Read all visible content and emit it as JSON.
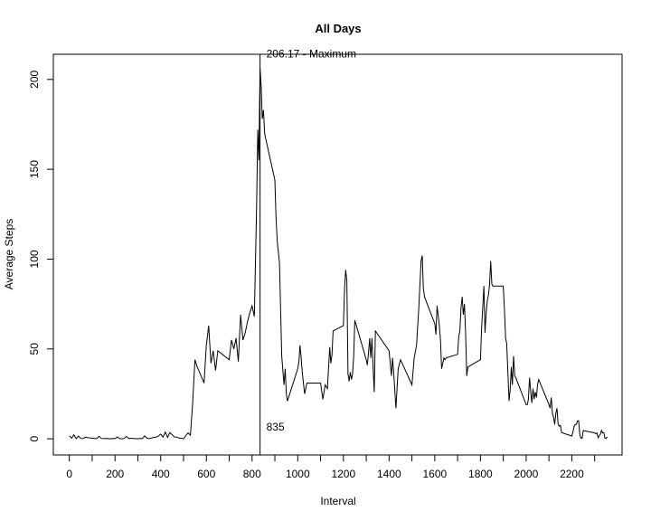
{
  "chart_data": {
    "type": "line",
    "title": "All Days",
    "xlabel": "Interval",
    "ylabel": "Average Steps",
    "xlim": [
      -70,
      2420
    ],
    "ylim": [
      -9,
      214
    ],
    "x_ticks": [
      0,
      200,
      400,
      600,
      800,
      1000,
      1200,
      1400,
      1600,
      1800,
      2000,
      2200
    ],
    "x_minor_ticks": [
      100,
      300,
      500,
      700,
      900,
      1100,
      1300,
      1500,
      1700,
      1900,
      2100,
      2300
    ],
    "y_ticks": [
      0,
      50,
      100,
      150,
      200
    ],
    "grid": false,
    "series": [
      {
        "color": "#000000",
        "points": [
          [
            0,
            1.7
          ],
          [
            10,
            0.3
          ],
          [
            20,
            2.2
          ],
          [
            30,
            0.1
          ],
          [
            40,
            1.5
          ],
          [
            50,
            0.2
          ],
          [
            60,
            0.1
          ],
          [
            70,
            0.9
          ],
          [
            80,
            0.6
          ],
          [
            90,
            0.5
          ],
          [
            100,
            0.3
          ],
          [
            110,
            0.2
          ],
          [
            120,
            0.1
          ],
          [
            130,
            1.4
          ],
          [
            140,
            0.2
          ],
          [
            150,
            0.1
          ],
          [
            160,
            0.2
          ],
          [
            170,
            0.1
          ],
          [
            180,
            0.0
          ],
          [
            190,
            0.2
          ],
          [
            200,
            0.1
          ],
          [
            210,
            1.0
          ],
          [
            220,
            0.1
          ],
          [
            230,
            0.0
          ],
          [
            240,
            0.2
          ],
          [
            250,
            1.3
          ],
          [
            260,
            0.1
          ],
          [
            270,
            0.3
          ],
          [
            280,
            0.1
          ],
          [
            290,
            0.1
          ],
          [
            300,
            0.0
          ],
          [
            310,
            0.2
          ],
          [
            320,
            0.1
          ],
          [
            330,
            1.6
          ],
          [
            340,
            0.3
          ],
          [
            350,
            0.1
          ],
          [
            360,
            0.4
          ],
          [
            370,
            0.8
          ],
          [
            380,
            0.9
          ],
          [
            390,
            1.5
          ],
          [
            400,
            2.6
          ],
          [
            410,
            0.9
          ],
          [
            420,
            3.8
          ],
          [
            430,
            0.8
          ],
          [
            440,
            3.5
          ],
          [
            450,
            2.3
          ],
          [
            460,
            1.0
          ],
          [
            470,
            0.9
          ],
          [
            480,
            0.4
          ],
          [
            490,
            0.3
          ],
          [
            500,
            0.0
          ],
          [
            510,
            1.8
          ],
          [
            520,
            3.3
          ],
          [
            530,
            2.0
          ],
          [
            540,
            20.0
          ],
          [
            550,
            44.0
          ],
          [
            560,
            40.0
          ],
          [
            570,
            37.0
          ],
          [
            580,
            34.0
          ],
          [
            590,
            31.0
          ],
          [
            600,
            52.0
          ],
          [
            610,
            63.0
          ],
          [
            620,
            42.0
          ],
          [
            630,
            49.0
          ],
          [
            640,
            38.0
          ],
          [
            650,
            49.0
          ],
          [
            700,
            44.0
          ],
          [
            710,
            55.0
          ],
          [
            720,
            50.0
          ],
          [
            730,
            56.0
          ],
          [
            740,
            43.0
          ],
          [
            750,
            69.0
          ],
          [
            760,
            55.0
          ],
          [
            770,
            59.0
          ],
          [
            780,
            65.0
          ],
          [
            790,
            70.0
          ],
          [
            800,
            74.0
          ],
          [
            810,
            68.0
          ],
          [
            820,
            129.0
          ],
          [
            825,
            172.0
          ],
          [
            830,
            155.0
          ],
          [
            835,
            206.17
          ],
          [
            840,
            196.0
          ],
          [
            845,
            178.0
          ],
          [
            850,
            183.0
          ],
          [
            855,
            170.0
          ],
          [
            860,
            167.0
          ],
          [
            900,
            144.0
          ],
          [
            905,
            123.0
          ],
          [
            910,
            110.0
          ],
          [
            920,
            98.0
          ],
          [
            930,
            46.0
          ],
          [
            940,
            30.0
          ],
          [
            945,
            39.0
          ],
          [
            950,
            25.0
          ],
          [
            955,
            21.0
          ],
          [
            1000,
            39.0
          ],
          [
            1005,
            43.0
          ],
          [
            1010,
            52.0
          ],
          [
            1015,
            45.0
          ],
          [
            1020,
            37.0
          ],
          [
            1030,
            25.0
          ],
          [
            1040,
            31.0
          ],
          [
            1100,
            31.0
          ],
          [
            1110,
            22.0
          ],
          [
            1120,
            30.0
          ],
          [
            1130,
            28.0
          ],
          [
            1140,
            51.0
          ],
          [
            1145,
            42.0
          ],
          [
            1150,
            47.0
          ],
          [
            1155,
            60.0
          ],
          [
            1200,
            63.0
          ],
          [
            1205,
            84.0
          ],
          [
            1210,
            94.0
          ],
          [
            1215,
            88.0
          ],
          [
            1220,
            36.0
          ],
          [
            1225,
            32.0
          ],
          [
            1230,
            37.0
          ],
          [
            1235,
            33.0
          ],
          [
            1240,
            36.0
          ],
          [
            1245,
            46.0
          ],
          [
            1250,
            66.0
          ],
          [
            1300,
            44.0
          ],
          [
            1305,
            41.0
          ],
          [
            1310,
            48.0
          ],
          [
            1315,
            56.0
          ],
          [
            1320,
            45.0
          ],
          [
            1325,
            56.0
          ],
          [
            1330,
            39.0
          ],
          [
            1335,
            26.0
          ],
          [
            1340,
            60.0
          ],
          [
            1400,
            49.0
          ],
          [
            1405,
            42.0
          ],
          [
            1410,
            35.0
          ],
          [
            1415,
            45.0
          ],
          [
            1420,
            37.0
          ],
          [
            1430,
            17.0
          ],
          [
            1440,
            39.0
          ],
          [
            1450,
            44.0
          ],
          [
            1500,
            30.0
          ],
          [
            1510,
            45.0
          ],
          [
            1520,
            52.0
          ],
          [
            1530,
            73.0
          ],
          [
            1540,
            99.0
          ],
          [
            1545,
            102.0
          ],
          [
            1550,
            84.0
          ],
          [
            1555,
            79.0
          ],
          [
            1600,
            64.0
          ],
          [
            1605,
            58.0
          ],
          [
            1610,
            74.0
          ],
          [
            1620,
            63.0
          ],
          [
            1625,
            55.0
          ],
          [
            1630,
            39.0
          ],
          [
            1640,
            45.0
          ],
          [
            1645,
            44.0
          ],
          [
            1650,
            45.0
          ],
          [
            1700,
            47.0
          ],
          [
            1705,
            57.0
          ],
          [
            1710,
            60.0
          ],
          [
            1715,
            73.0
          ],
          [
            1720,
            79.0
          ],
          [
            1725,
            69.0
          ],
          [
            1730,
            75.0
          ],
          [
            1735,
            58.0
          ],
          [
            1740,
            35.0
          ],
          [
            1745,
            40.0
          ],
          [
            1800,
            44.0
          ],
          [
            1805,
            61.0
          ],
          [
            1810,
            73.0
          ],
          [
            1815,
            85.0
          ],
          [
            1820,
            59.0
          ],
          [
            1825,
            70.0
          ],
          [
            1830,
            77.0
          ],
          [
            1835,
            80.0
          ],
          [
            1840,
            86.0
          ],
          [
            1845,
            99.0
          ],
          [
            1850,
            86.0
          ],
          [
            1855,
            85.0
          ],
          [
            1900,
            85.0
          ],
          [
            1905,
            72.0
          ],
          [
            1910,
            56.0
          ],
          [
            1915,
            53.0
          ],
          [
            1920,
            37.0
          ],
          [
            1925,
            21.0
          ],
          [
            1930,
            27.0
          ],
          [
            1935,
            40.0
          ],
          [
            1940,
            30.0
          ],
          [
            1945,
            46.0
          ],
          [
            1950,
            35.0
          ],
          [
            1955,
            34.0
          ],
          [
            2000,
            19.0
          ],
          [
            2005,
            19.0
          ],
          [
            2010,
            22.0
          ],
          [
            2015,
            34.0
          ],
          [
            2020,
            26.0
          ],
          [
            2025,
            20.0
          ],
          [
            2030,
            28.0
          ],
          [
            2035,
            22.0
          ],
          [
            2040,
            26.0
          ],
          [
            2045,
            23.0
          ],
          [
            2050,
            30.0
          ],
          [
            2055,
            33.0
          ],
          [
            2100,
            19.0
          ],
          [
            2105,
            17.0
          ],
          [
            2110,
            23.0
          ],
          [
            2115,
            14.0
          ],
          [
            2120,
            12.0
          ],
          [
            2125,
            8.0
          ],
          [
            2130,
            14.0
          ],
          [
            2135,
            17.0
          ],
          [
            2140,
            8.0
          ],
          [
            2145,
            7.0
          ],
          [
            2150,
            7.5
          ],
          [
            2155,
            3.5
          ],
          [
            2200,
            1.5
          ],
          [
            2205,
            4.0
          ],
          [
            2210,
            7.0
          ],
          [
            2215,
            8.0
          ],
          [
            2220,
            8.0
          ],
          [
            2225,
            10.0
          ],
          [
            2230,
            10.0
          ],
          [
            2235,
            2.0
          ],
          [
            2240,
            0.4
          ],
          [
            2245,
            0.3
          ],
          [
            2250,
            4.6
          ],
          [
            2300,
            3.3
          ],
          [
            2305,
            2.8
          ],
          [
            2310,
            3.3
          ],
          [
            2315,
            0.6
          ],
          [
            2320,
            1.6
          ],
          [
            2325,
            2.6
          ],
          [
            2330,
            4.7
          ],
          [
            2335,
            3.3
          ],
          [
            2340,
            3.4
          ],
          [
            2345,
            0.3
          ],
          [
            2350,
            0.2
          ],
          [
            2355,
            1.1
          ]
        ]
      }
    ],
    "annotations": [
      {
        "label": "206.17 - Maximum",
        "x": 835,
        "y": 206.17
      },
      {
        "label": "835",
        "x": 835,
        "y": 0
      }
    ],
    "vline_x": 835
  }
}
